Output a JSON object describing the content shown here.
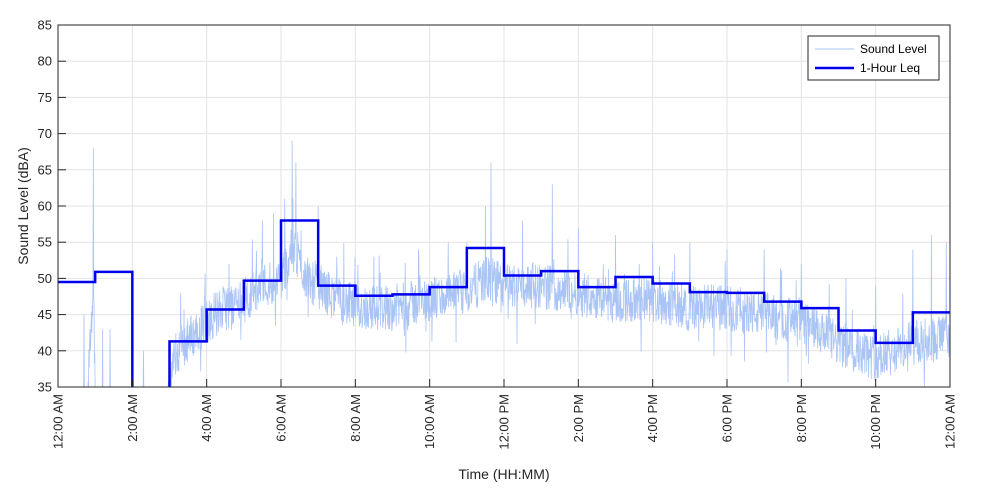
{
  "chart_data": {
    "type": "line",
    "title": "",
    "xlabel": "Time (HH:MM)",
    "ylabel": "Sound Level (dBA)",
    "xlim": [
      0,
      24
    ],
    "ylim": [
      35,
      85
    ],
    "y_ticks": [
      35,
      40,
      45,
      50,
      55,
      60,
      65,
      70,
      75,
      80,
      85
    ],
    "x_ticks": [
      0,
      2,
      4,
      6,
      8,
      10,
      12,
      14,
      16,
      18,
      20,
      22,
      24
    ],
    "x_tick_labels": [
      "12:00 AM",
      "2:00 AM",
      "4:00 AM",
      "6:00 AM",
      "8:00 AM",
      "10:00 AM",
      "12:00 PM",
      "2:00 PM",
      "4:00 PM",
      "6:00 PM",
      "8:00 PM",
      "10:00 PM",
      "12:00 AM"
    ],
    "grid": true,
    "legend_position": "top-right",
    "colors": {
      "sound_level": "#a9c4f5",
      "leq": "#0000ee"
    },
    "series": [
      {
        "name": "Sound Level",
        "style": "thin-noisy",
        "baseline": [
          [
            0,
            34
          ],
          [
            0.8,
            34
          ],
          [
            0.85,
            40
          ],
          [
            0.95,
            49
          ],
          [
            1.0,
            34
          ],
          [
            1.8,
            34
          ],
          [
            2.4,
            34
          ],
          [
            2.9,
            34
          ],
          [
            3.2,
            40
          ],
          [
            3.6,
            42
          ],
          [
            4.0,
            44
          ],
          [
            4.5,
            46
          ],
          [
            5.0,
            47
          ],
          [
            5.5,
            49
          ],
          [
            6.0,
            50
          ],
          [
            6.3,
            54
          ],
          [
            6.7,
            50
          ],
          [
            7.0,
            49
          ],
          [
            7.5,
            47
          ],
          [
            8.0,
            46
          ],
          [
            9.0,
            46
          ],
          [
            10.0,
            47
          ],
          [
            11.0,
            48
          ],
          [
            11.5,
            50
          ],
          [
            12.0,
            49
          ],
          [
            13.0,
            49
          ],
          [
            14.0,
            48
          ],
          [
            15.0,
            47
          ],
          [
            16.0,
            47
          ],
          [
            17.0,
            46
          ],
          [
            18.0,
            46
          ],
          [
            19.0,
            45
          ],
          [
            20.0,
            44
          ],
          [
            21.0,
            41
          ],
          [
            22.0,
            39
          ],
          [
            22.5,
            40
          ],
          [
            23.0,
            41
          ],
          [
            24.0,
            42
          ]
        ],
        "spikes": [
          [
            0.7,
            45
          ],
          [
            0.95,
            68
          ],
          [
            1.2,
            43
          ],
          [
            1.4,
            43
          ],
          [
            2.3,
            40
          ],
          [
            3.3,
            48
          ],
          [
            4.2,
            48
          ],
          [
            4.6,
            52
          ],
          [
            5.5,
            58
          ],
          [
            5.8,
            59
          ],
          [
            6.1,
            61
          ],
          [
            6.3,
            69
          ],
          [
            6.4,
            66
          ],
          [
            7.0,
            60
          ],
          [
            7.5,
            53
          ],
          [
            8.5,
            53
          ],
          [
            9.7,
            54
          ],
          [
            10.5,
            55
          ],
          [
            11.0,
            55
          ],
          [
            11.5,
            60
          ],
          [
            11.65,
            66
          ],
          [
            12.5,
            58
          ],
          [
            13.3,
            63
          ],
          [
            14.0,
            57
          ],
          [
            15.0,
            56
          ],
          [
            16.0,
            55
          ],
          [
            17.0,
            55
          ],
          [
            18.0,
            54
          ],
          [
            19.0,
            54
          ],
          [
            20.0,
            52
          ],
          [
            21.2,
            50
          ],
          [
            22.0,
            49
          ],
          [
            23.0,
            54
          ],
          [
            23.5,
            56
          ],
          [
            23.9,
            55
          ]
        ]
      },
      {
        "name": "1-Hour Leq",
        "style": "step",
        "hours": [
          0,
          1,
          2,
          3,
          4,
          5,
          6,
          7,
          8,
          9,
          10,
          11,
          12,
          13,
          14,
          15,
          16,
          17,
          18,
          19,
          20,
          21,
          22,
          23
        ],
        "values": [
          49.5,
          50.9,
          34,
          41.3,
          45.7,
          49.7,
          58.0,
          49.0,
          47.6,
          47.8,
          48.8,
          54.2,
          50.4,
          51.0,
          48.8,
          50.2,
          49.3,
          48.1,
          48.0,
          46.8,
          45.9,
          42.8,
          41.1,
          45.3
        ]
      }
    ]
  }
}
